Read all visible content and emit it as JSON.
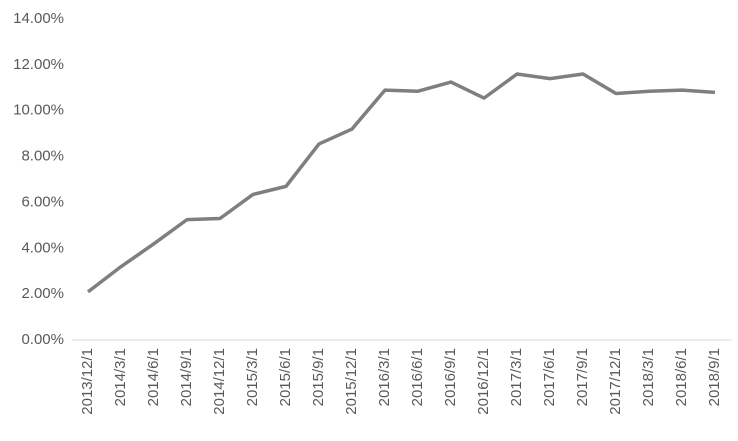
{
  "chart_data": {
    "type": "line",
    "categories": [
      "2013/12/1",
      "2014/3/1",
      "2014/6/1",
      "2014/9/1",
      "2014/12/1",
      "2015/3/1",
      "2015/6/1",
      "2015/9/1",
      "2015/12/1",
      "2016/3/1",
      "2016/6/1",
      "2016/9/1",
      "2016/12/1",
      "2017/3/1",
      "2017/6/1",
      "2017/9/1",
      "2017/12/1",
      "2018/3/1",
      "2018/6/1",
      "2018/9/1"
    ],
    "series": [
      {
        "color": "#7f7f7f",
        "values": [
          2.1,
          3.2,
          4.2,
          5.25,
          5.3,
          6.35,
          6.7,
          8.55,
          9.2,
          10.9,
          10.85,
          11.25,
          10.55,
          11.6,
          11.4,
          11.6,
          10.75,
          10.85,
          10.9,
          10.8
        ]
      }
    ],
    "ylim": [
      0,
      14
    ],
    "yticks": [
      {
        "value": 0,
        "label": "0.00%"
      },
      {
        "value": 2,
        "label": "2.00%"
      },
      {
        "value": 4,
        "label": "4.00%"
      },
      {
        "value": 6,
        "label": "6.00%"
      },
      {
        "value": 8,
        "label": "8.00%"
      },
      {
        "value": 10,
        "label": "10.00%"
      },
      {
        "value": 12,
        "label": "12.00%"
      },
      {
        "value": 14,
        "label": "14.00%"
      }
    ],
    "grid": false
  }
}
